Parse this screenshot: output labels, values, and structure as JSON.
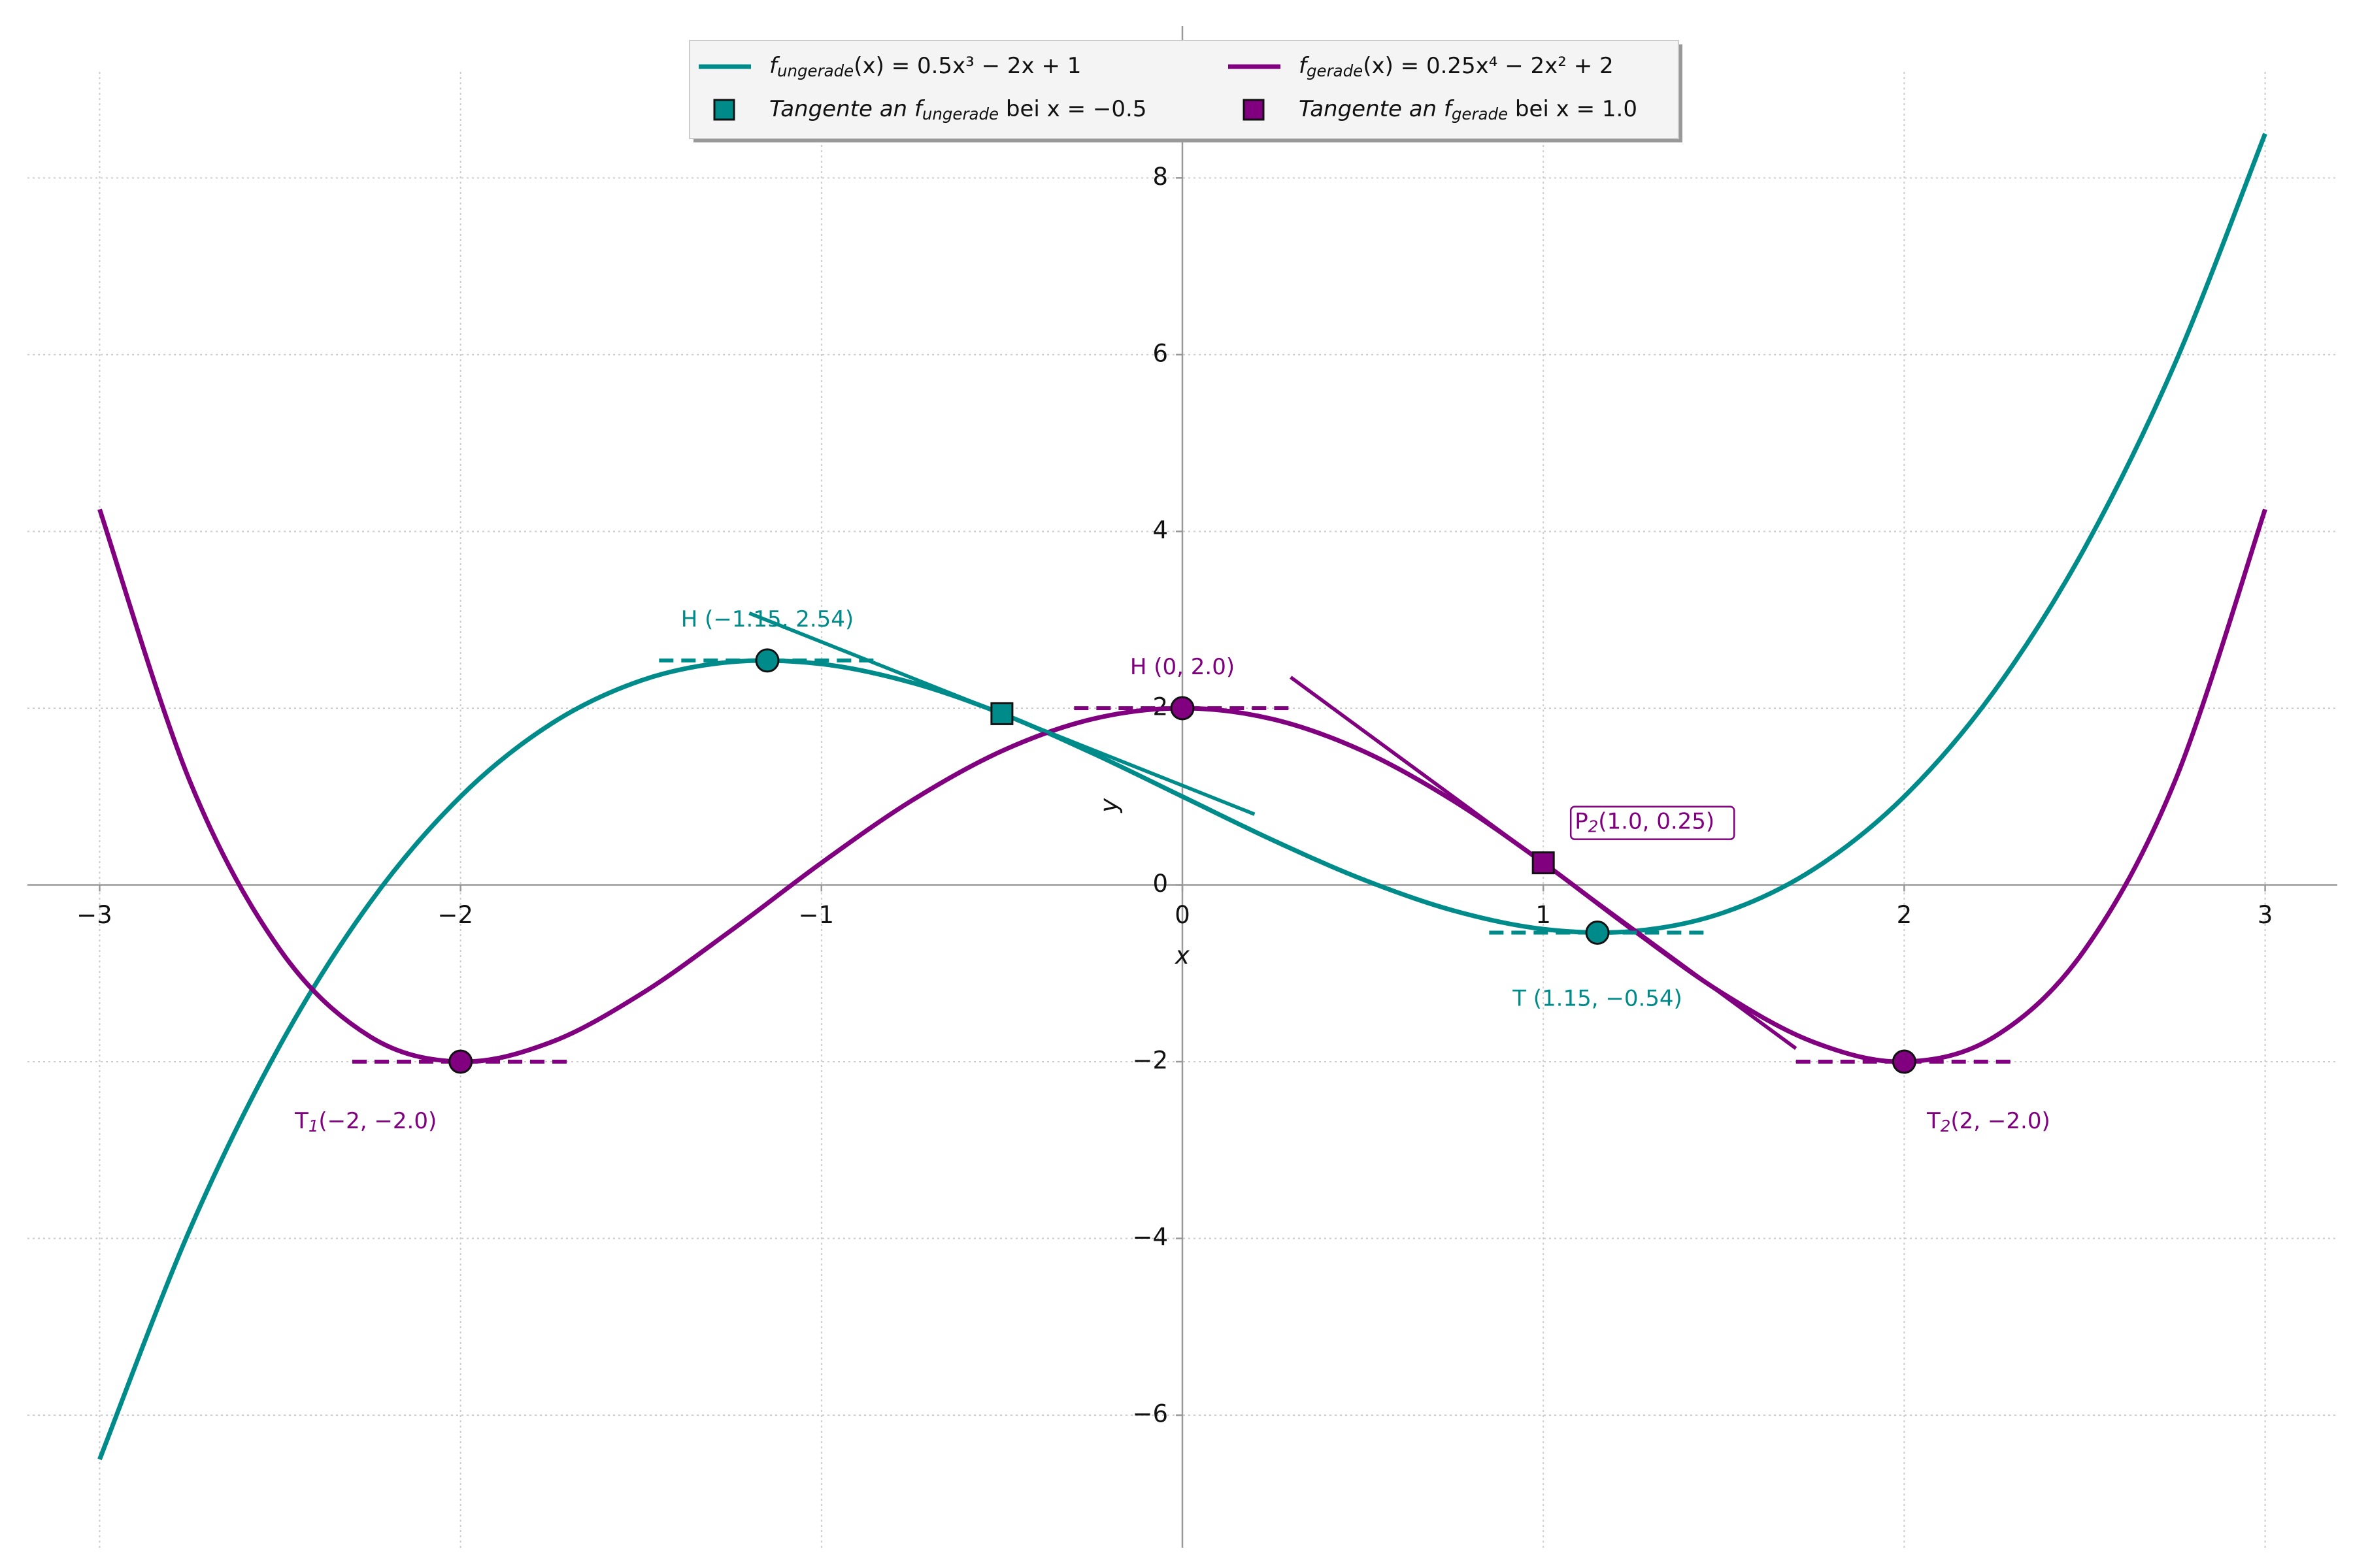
{
  "chart_data": {
    "type": "line",
    "x": [
      -3,
      -2.75,
      -2.5,
      -2.25,
      -2,
      -1.75,
      -1.5,
      -1.25,
      -1,
      -0.75,
      -0.5,
      -0.25,
      0,
      0.25,
      0.5,
      0.75,
      1,
      1.25,
      1.5,
      1.75,
      2,
      2.25,
      2.5,
      2.75,
      3
    ],
    "series": [
      {
        "name": [
          "f",
          "ungerade",
          "(x) = 0.5x³ − 2x + 1"
        ],
        "color": "#008b8b",
        "values": [
          -6.5,
          -3.8984,
          -1.8125,
          -0.1953,
          1,
          1.8203,
          2.3125,
          2.5234,
          2.5,
          2.2891,
          1.9375,
          1.4922,
          1,
          0.5078,
          0.0625,
          -0.2891,
          -0.5,
          -0.5234,
          -0.3125,
          0.1797,
          1,
          2.1953,
          3.8125,
          5.8984,
          8.5
        ]
      },
      {
        "name": [
          "f",
          "gerade",
          "(x) = 0.25x⁴ − 2x² + 2"
        ],
        "color": "#800080",
        "values": [
          4.25,
          1.1729,
          -0.7344,
          -1.7178,
          -2,
          -1.7803,
          -1.2344,
          -0.5146,
          0.25,
          0.9541,
          1.5156,
          1.876,
          2,
          1.876,
          1.5156,
          0.9541,
          0.25,
          -0.5146,
          -1.2344,
          -1.7803,
          -2,
          -1.7178,
          -0.7344,
          1.1729,
          4.25
        ]
      }
    ],
    "tangent_points": [
      {
        "name": [
          "Tangente an f",
          "ungerade",
          " bei x = −0.5"
        ],
        "color": "#008b8b",
        "x": -0.5,
        "y": 1.9375
      },
      {
        "name": [
          "Tangente an f",
          "gerade",
          " bei x = 1.0"
        ],
        "color": "#800080",
        "x": 1,
        "y": 0.25,
        "label": [
          "P",
          "2",
          "(1.0, 0.25)"
        ]
      }
    ],
    "tangents": [
      {
        "color": "#008b8b",
        "dashed": false,
        "x": [
          -1.2,
          0.2
        ],
        "y": [
          3.075,
          0.8
        ]
      },
      {
        "color": "#800080",
        "dashed": false,
        "x": [
          0.3,
          1.7
        ],
        "y": [
          2.35,
          -1.85
        ]
      },
      {
        "color": "#008b8b",
        "dashed": true,
        "x": [
          -1.45,
          -0.85
        ],
        "y": [
          2.54,
          2.54
        ]
      },
      {
        "color": "#008b8b",
        "dashed": true,
        "x": [
          0.85,
          1.45
        ],
        "y": [
          -0.54,
          -0.54
        ]
      },
      {
        "color": "#800080",
        "dashed": true,
        "x": [
          -0.3,
          0.3
        ],
        "y": [
          2,
          2
        ]
      },
      {
        "color": "#800080",
        "dashed": true,
        "x": [
          -2.3,
          -1.7
        ],
        "y": [
          -2,
          -2
        ]
      },
      {
        "color": "#800080",
        "dashed": true,
        "x": [
          1.7,
          2.3
        ],
        "y": [
          -2,
          -2
        ]
      }
    ],
    "extrema": [
      {
        "color": "#008b8b",
        "x": -1.15,
        "y": 2.54,
        "label": [
          "H (−1.15, 2.54)"
        ]
      },
      {
        "color": "#008b8b",
        "x": 1.15,
        "y": -0.54,
        "label": [
          "T (1.15, −0.54)"
        ]
      },
      {
        "color": "#800080",
        "x": 0,
        "y": 2,
        "label": [
          "H (0, 2.0)"
        ]
      },
      {
        "color": "#800080",
        "x": -2,
        "y": -2,
        "label": [
          "T",
          "1",
          "(−2, −2.0)"
        ]
      },
      {
        "color": "#800080",
        "x": 2,
        "y": -2,
        "label": [
          "T",
          "2",
          "(2, −2.0)"
        ]
      }
    ],
    "xlabel": "x",
    "ylabel": "y",
    "xlim": [
      -3.2,
      3.2
    ],
    "ylim": [
      -7.5,
      9.2
    ],
    "xticks": [
      {
        "value": -3,
        "label": "−3"
      },
      {
        "value": -2,
        "label": "−2"
      },
      {
        "value": -1,
        "label": "−1"
      },
      0,
      1,
      2,
      3
    ],
    "yticks": [
      {
        "value": -6,
        "label": "−6"
      },
      {
        "value": -4,
        "label": "−4"
      },
      {
        "value": -2,
        "label": "−2"
      },
      0,
      2,
      4,
      6,
      8
    ],
    "grid": true,
    "legend": "upper center"
  }
}
